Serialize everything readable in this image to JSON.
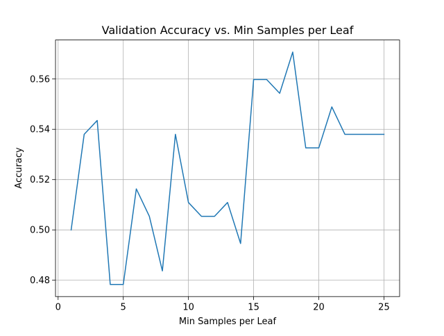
{
  "chart_data": {
    "type": "line",
    "title": "Validation Accuracy vs. Min Samples per Leaf",
    "xlabel": "Min Samples per Leaf",
    "ylabel": "Accuracy",
    "xlim": [
      -0.2,
      26.2
    ],
    "ylim": [
      0.4735,
      0.5755
    ],
    "xticks": [
      0,
      5,
      10,
      15,
      20,
      25
    ],
    "xtick_labels": [
      "0",
      "5",
      "10",
      "15",
      "20",
      "25"
    ],
    "yticks": [
      0.48,
      0.5,
      0.52,
      0.54,
      0.56
    ],
    "ytick_labels": [
      "0.48",
      "0.50",
      "0.52",
      "0.54",
      "0.56"
    ],
    "grid": true,
    "series": [
      {
        "color": "#1f77b4",
        "x": [
          1,
          2,
          3,
          4,
          5,
          6,
          7,
          8,
          9,
          10,
          11,
          12,
          13,
          14,
          15,
          16,
          17,
          18,
          19,
          20,
          21,
          22,
          23,
          24,
          25
        ],
        "y": [
          0.5,
          0.538,
          0.5435,
          0.4783,
          0.4783,
          0.5163,
          0.5054,
          0.4837,
          0.538,
          0.5109,
          0.5054,
          0.5054,
          0.5109,
          0.4946,
          0.5598,
          0.5598,
          0.5543,
          0.5707,
          0.5326,
          0.5326,
          0.5489,
          0.538,
          0.538,
          0.538,
          0.538
        ]
      }
    ]
  }
}
